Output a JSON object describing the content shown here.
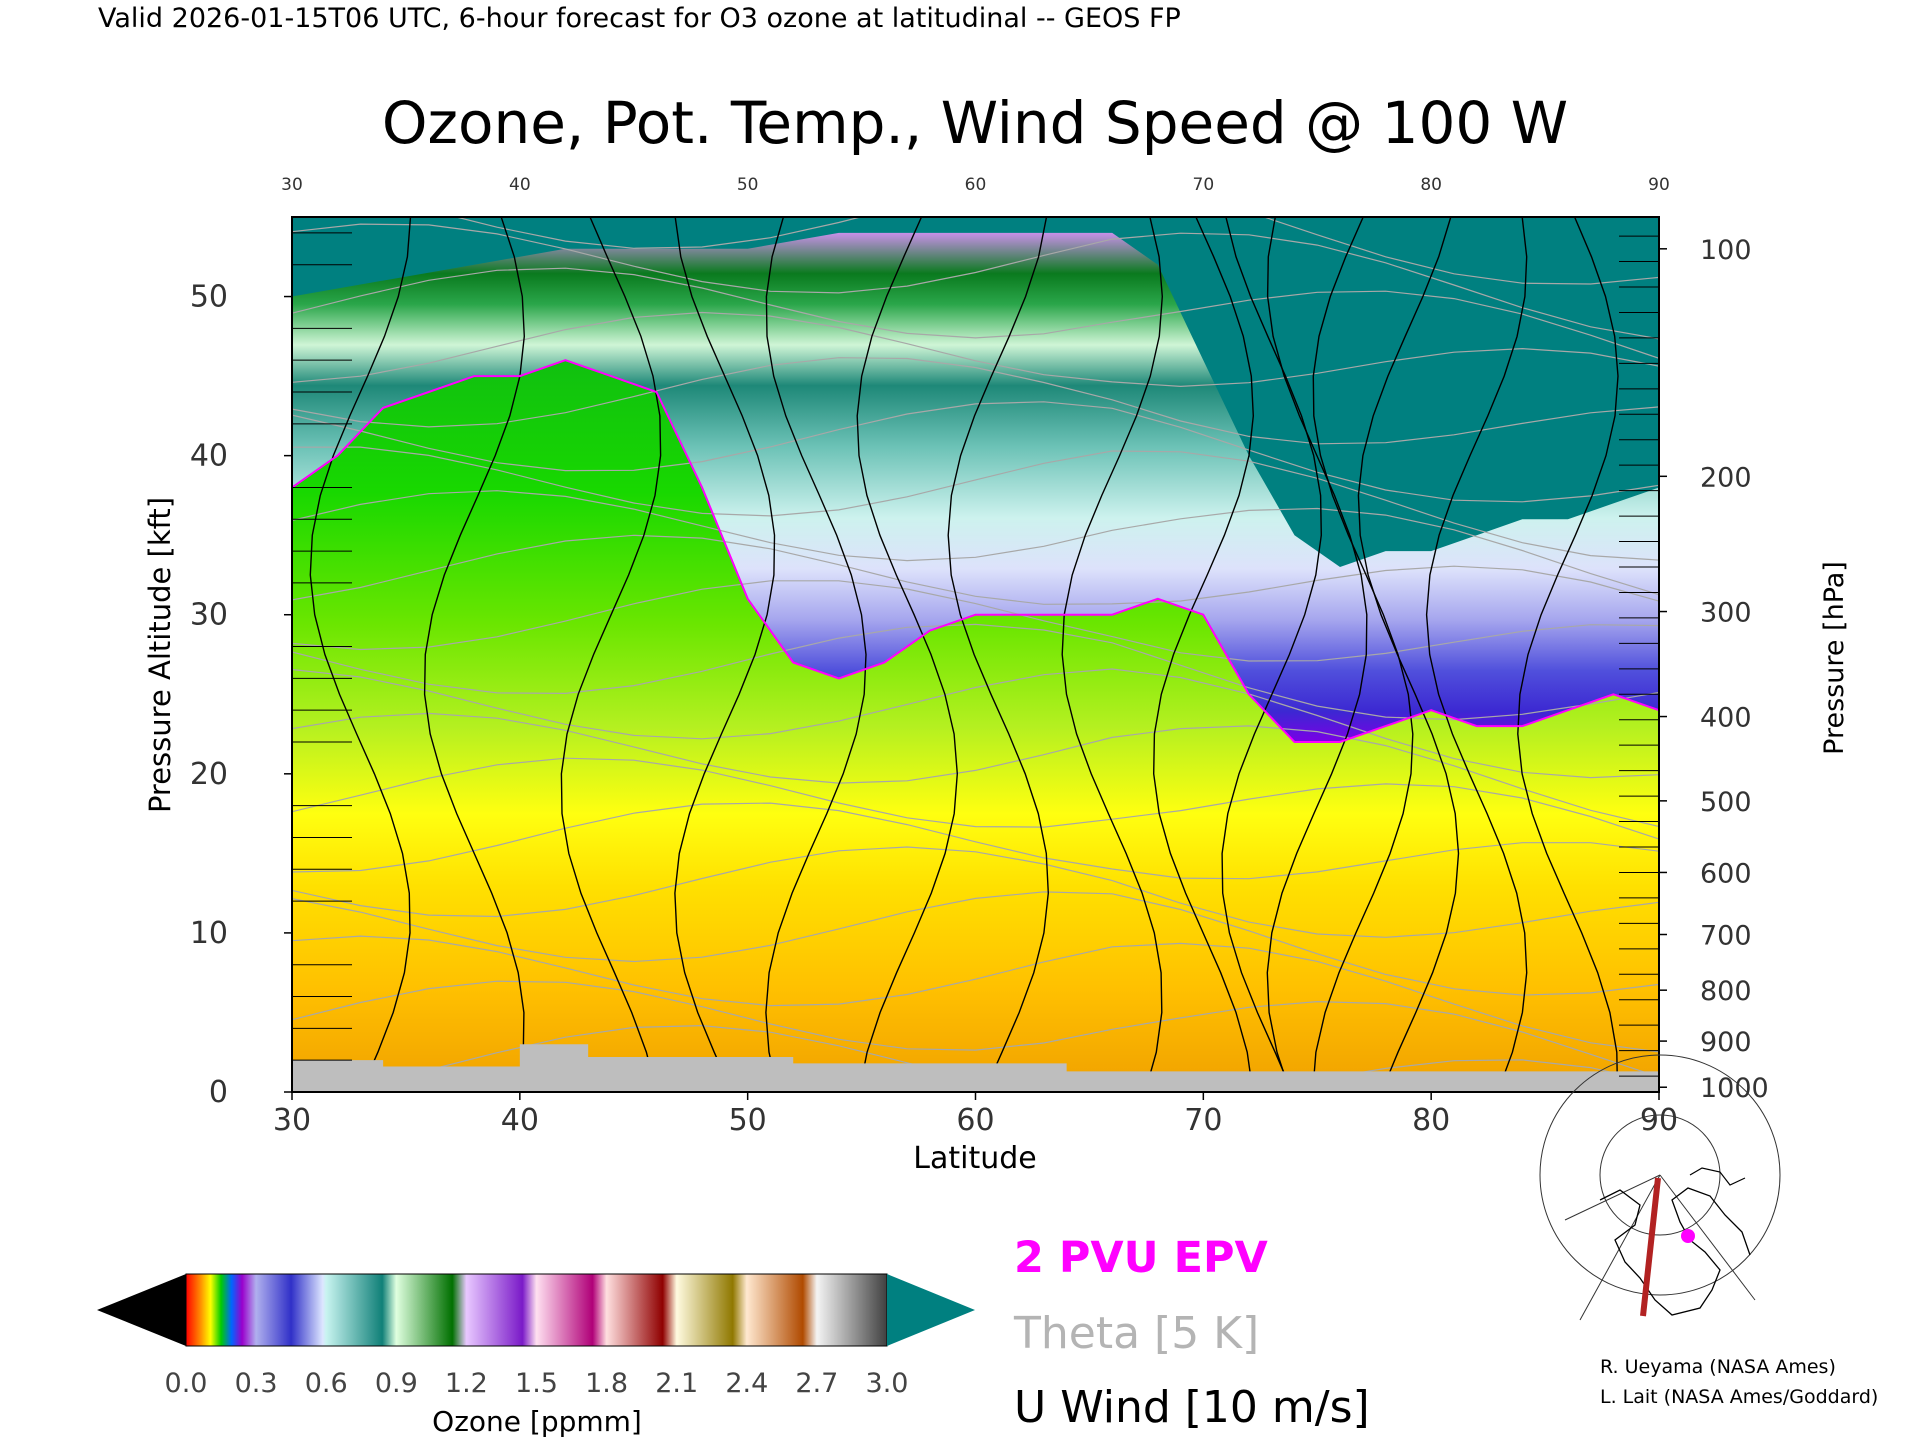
{
  "header": "Valid 2026-01-15T06 UTC, 6-hour forecast for O3 ozone at latitudinal -- GEOS FP",
  "chart_data": {
    "type": "heatmap",
    "title": "Ozone, Pot. Temp., Wind Speed @ 100 W",
    "xlabel": "Latitude",
    "ylabel": "Pressure Altitude [kft]",
    "y2label": "Pressure [hPa]",
    "xlim": [
      30,
      90
    ],
    "ylim": [
      0,
      55
    ],
    "x_ticks": [
      "30",
      "40",
      "50",
      "60",
      "70",
      "80",
      "90"
    ],
    "y_ticks": [
      "0",
      "10",
      "20",
      "30",
      "40",
      "50"
    ],
    "pressure_ticks": [
      {
        "label": "100",
        "kft": 53.0
      },
      {
        "label": "200",
        "kft": 38.7
      },
      {
        "label": "300",
        "kft": 30.2
      },
      {
        "label": "400",
        "kft": 23.6
      },
      {
        "label": "500",
        "kft": 18.3
      },
      {
        "label": "600",
        "kft": 13.8
      },
      {
        "label": "700",
        "kft": 9.9
      },
      {
        "label": "800",
        "kft": 6.4
      },
      {
        "label": "900",
        "kft": 3.2
      },
      {
        "label": "1000",
        "kft": 0.3
      }
    ],
    "tropopause_kft": [
      [
        30,
        38
      ],
      [
        32,
        40
      ],
      [
        34,
        43
      ],
      [
        36,
        44
      ],
      [
        38,
        45
      ],
      [
        40,
        45
      ],
      [
        42,
        46
      ],
      [
        44,
        45
      ],
      [
        46,
        44
      ],
      [
        48,
        38
      ],
      [
        50,
        31
      ],
      [
        52,
        27
      ],
      [
        54,
        26
      ],
      [
        56,
        27
      ],
      [
        58,
        29
      ],
      [
        60,
        30
      ],
      [
        62,
        30
      ],
      [
        64,
        30
      ],
      [
        66,
        30
      ],
      [
        68,
        31
      ],
      [
        70,
        30
      ],
      [
        72,
        25
      ],
      [
        74,
        22
      ],
      [
        76,
        22
      ],
      [
        78,
        23
      ],
      [
        80,
        24
      ],
      [
        82,
        23
      ],
      [
        84,
        23
      ],
      [
        86,
        24
      ],
      [
        88,
        25
      ],
      [
        90,
        24
      ]
    ],
    "ozone_top_kft": [
      [
        30,
        50
      ],
      [
        34,
        51
      ],
      [
        38,
        52
      ],
      [
        42,
        53
      ],
      [
        46,
        53
      ],
      [
        50,
        53
      ],
      [
        54,
        54
      ],
      [
        58,
        54
      ],
      [
        62,
        54
      ],
      [
        66,
        54
      ],
      [
        68,
        52
      ],
      [
        70,
        46
      ],
      [
        72,
        40
      ],
      [
        74,
        35
      ],
      [
        76,
        33
      ],
      [
        78,
        34
      ],
      [
        80,
        34
      ],
      [
        82,
        35
      ],
      [
        84,
        36
      ],
      [
        86,
        36
      ],
      [
        88,
        37
      ],
      [
        90,
        38
      ]
    ],
    "colorbar": {
      "label": "Ozone [ppmm]",
      "ticks": [
        "0.0",
        "0.3",
        "0.6",
        "0.9",
        "1.2",
        "1.5",
        "1.8",
        "2.1",
        "2.4",
        "2.7",
        "3.0"
      ],
      "range": [
        0,
        3.0
      ]
    },
    "legend": [
      {
        "label": "2 PVU EPV",
        "color": "#ff00ff"
      },
      {
        "label": "Theta [5 K]",
        "color": "#b0b0b0"
      },
      {
        "label": "U Wind [10 m/s]",
        "color": "#000000"
      }
    ],
    "colors": {
      "surface": "#bebebe",
      "teal": "#008080",
      "epv": "#ff00ff",
      "theta": "#a8a8a8"
    }
  },
  "credits": [
    "R. Ueyama (NASA Ames)",
    "L. Lait (NASA Ames/Goddard)"
  ]
}
